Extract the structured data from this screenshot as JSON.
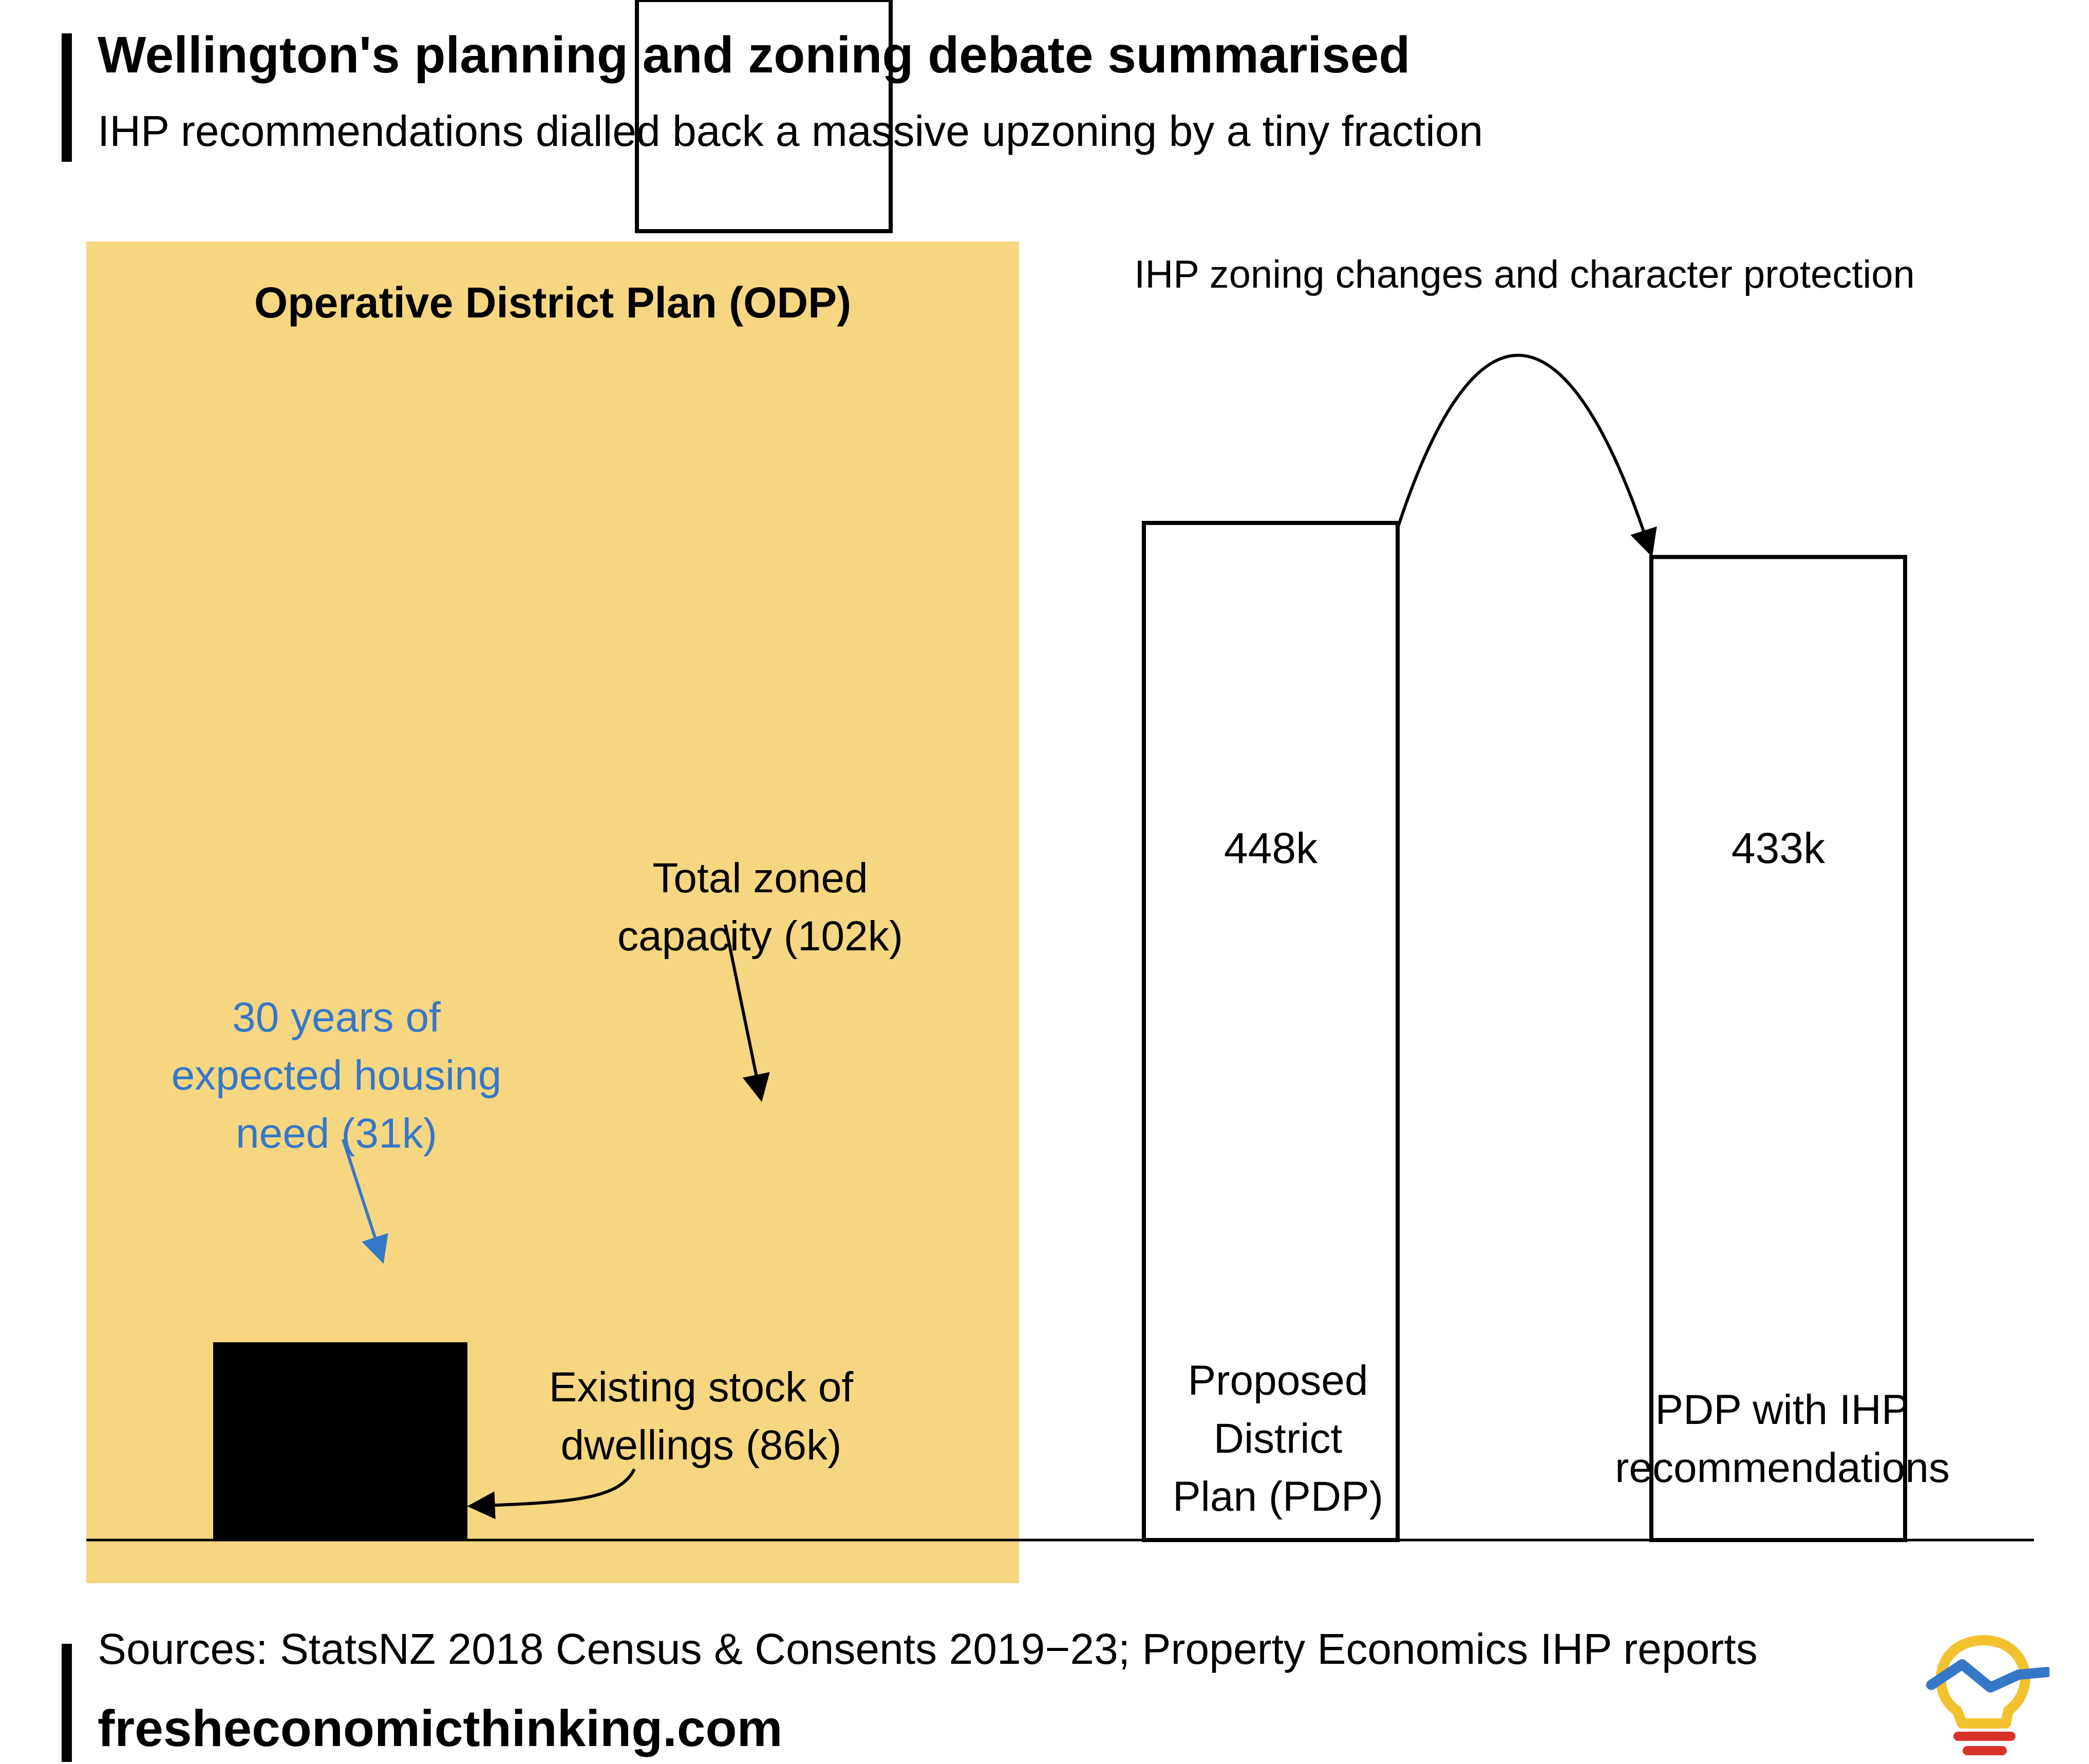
{
  "header": {
    "title": "Wellington's planning and zoning debate summarised",
    "subtitle": "IHP recommendations dialled back a massive upzoning by a tiny fraction"
  },
  "footer": {
    "source": "Sources: StatsNZ 2018 Census & Consents 2019−23; Property Economics IHP reports",
    "site": "fresheconomicthinking.com"
  },
  "colors": {
    "odp_panel": "#F7D682",
    "housing_need": "#3578C8",
    "existing_stock": "#000000",
    "accent_text": "#3578C8",
    "logo_yellow": "#F2C12E",
    "logo_blue": "#3578C8",
    "logo_red": "#D9322B"
  },
  "chart_data": {
    "type": "bar",
    "panel_label": "Operative District Plan (ODP)",
    "units": "thousand dwellings",
    "odp": {
      "existing_stock": 86,
      "housing_need_30y": 31,
      "total_zoned_capacity": 102,
      "existing_stock_label": "Existing stock of dwellings (86k)",
      "existing_stock_label_lines": [
        "Existing stock of",
        "dwellings (86k)"
      ],
      "housing_need_label": "30 years of expected housing need (31k)",
      "housing_need_label_lines": [
        "30 years of",
        "expected housing",
        "need (31k)"
      ],
      "capacity_label": "Total zoned capacity (102k)",
      "capacity_label_lines": [
        "Total zoned",
        "capacity (102k)"
      ]
    },
    "plans": [
      {
        "name_lines": [
          "Proposed",
          "District",
          "Plan (PDP)"
        ],
        "value": 448,
        "value_label": "448k"
      },
      {
        "name_lines": [
          "PDP with IHP",
          "recommendations"
        ],
        "value": 433,
        "value_label": "433k"
      }
    ],
    "transition_label": "IHP zoning changes and character protection"
  }
}
